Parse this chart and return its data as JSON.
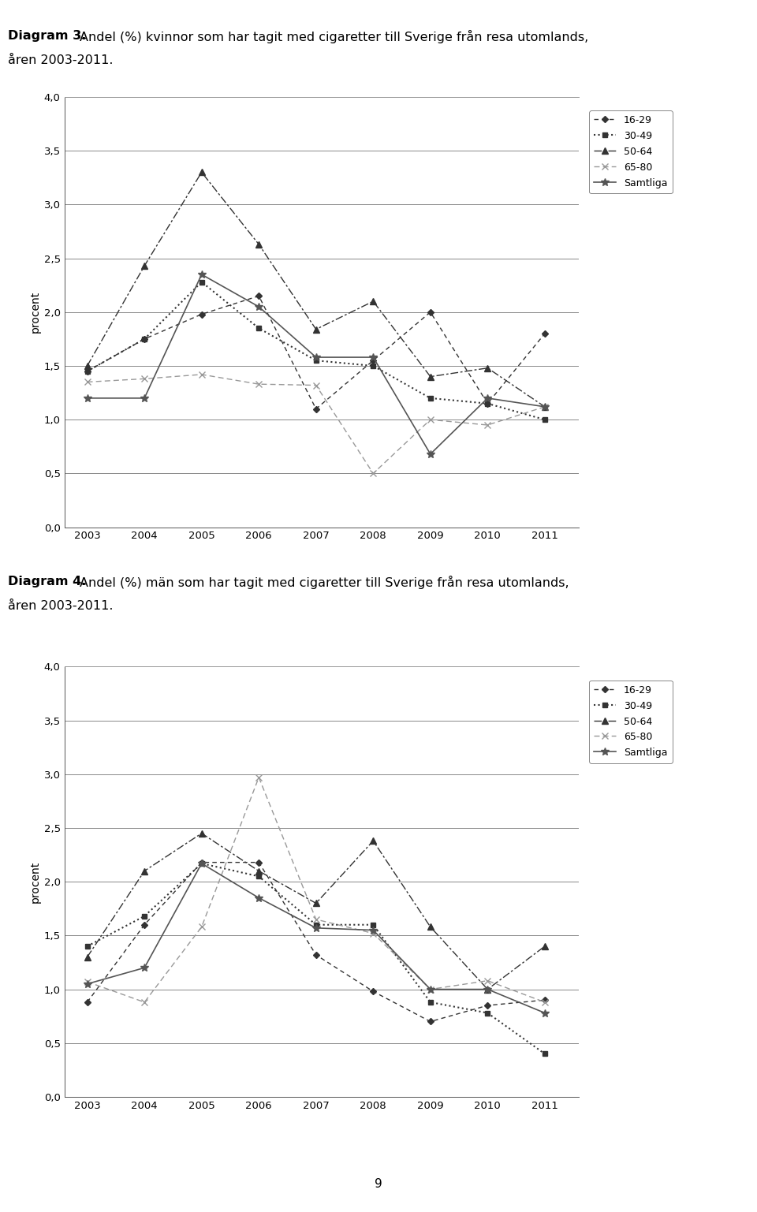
{
  "years": [
    2003,
    2004,
    2005,
    2006,
    2007,
    2008,
    2009,
    2010,
    2011
  ],
  "d3_16_29": [
    1.45,
    1.75,
    1.98,
    2.15,
    1.1,
    1.55,
    2.0,
    1.15,
    1.8
  ],
  "d3_30_49": [
    1.45,
    1.75,
    2.28,
    1.85,
    1.55,
    1.5,
    1.2,
    1.15,
    1.0
  ],
  "d3_50_64": [
    1.5,
    2.43,
    3.3,
    2.63,
    1.84,
    2.1,
    1.4,
    1.48,
    1.12
  ],
  "d3_65_80": [
    1.35,
    1.38,
    1.42,
    1.33,
    1.32,
    0.5,
    1.0,
    0.95,
    1.12
  ],
  "d3_samtliga": [
    1.2,
    1.2,
    2.35,
    2.05,
    1.58,
    1.58,
    0.68,
    1.2,
    1.12
  ],
  "d4_16_29": [
    0.88,
    1.6,
    2.18,
    2.18,
    1.32,
    0.98,
    0.7,
    0.85,
    0.9
  ],
  "d4_30_49": [
    1.4,
    1.68,
    2.17,
    2.05,
    1.6,
    1.6,
    0.88,
    0.78,
    0.4
  ],
  "d4_50_64": [
    1.3,
    2.1,
    2.45,
    2.1,
    1.8,
    2.38,
    1.58,
    1.0,
    1.4
  ],
  "d4_65_80": [
    1.07,
    0.88,
    1.58,
    2.97,
    1.65,
    1.52,
    1.0,
    1.08,
    0.88
  ],
  "d4_samtliga": [
    1.05,
    1.2,
    2.17,
    1.85,
    1.57,
    1.55,
    1.0,
    1.0,
    0.78
  ],
  "ylabel": "procent",
  "ylim": [
    0.0,
    4.0
  ],
  "yticks": [
    0.0,
    0.5,
    1.0,
    1.5,
    2.0,
    2.5,
    3.0,
    3.5,
    4.0
  ],
  "ytick_labels": [
    "0,0",
    "0,5",
    "1,0",
    "1,5",
    "2,0",
    "2,5",
    "3,0",
    "3,5",
    "4,0"
  ],
  "legend_labels": [
    "16-29",
    "30-49",
    "50-64",
    "65-80",
    "Samtliga"
  ],
  "page_number": "9",
  "bg_color": "#ffffff",
  "grid_color": "#888888"
}
